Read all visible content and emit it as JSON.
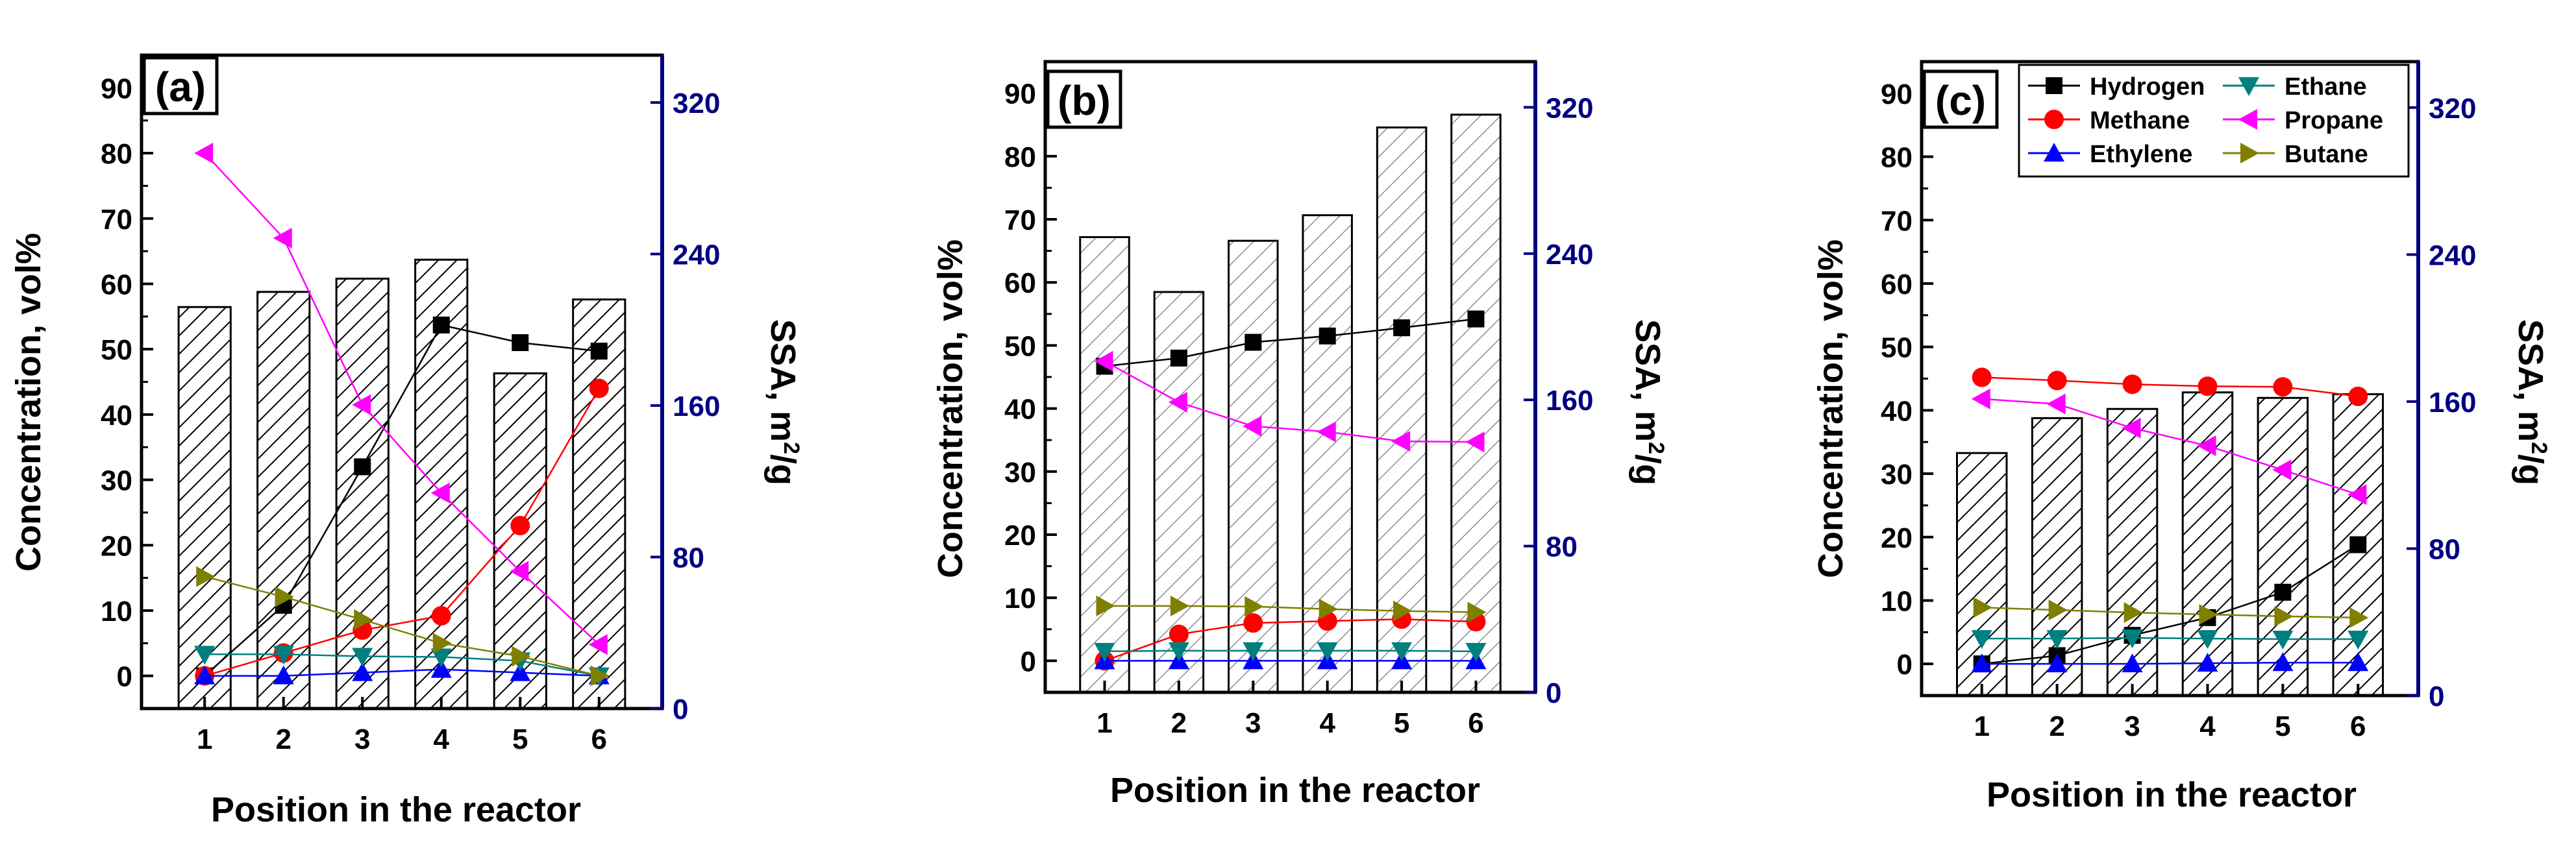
{
  "figure": {
    "colors": {
      "hydrogen": "#000000",
      "methane": "#ff0000",
      "ethylene": "#0000ff",
      "ethane": "#007f7f",
      "propane": "#ff00ff",
      "butane": "#7f7f00",
      "ssa_axis": "#000080",
      "bars_edge": "#000000"
    }
  },
  "chart_data": [
    {
      "panel": "(a)",
      "type": "bar+line",
      "xlabel": "Position in the reactor",
      "ylabel": "Concentration, vol%",
      "y2label_main": "SSA, m",
      "y2label_sup": "2",
      "y2label_tail": "/g",
      "categories": [
        "1",
        "2",
        "3",
        "4",
        "5",
        "6"
      ],
      "ylim": [
        -5,
        95
      ],
      "yticks": [
        "0",
        "10",
        "20",
        "30",
        "40",
        "50",
        "60",
        "70",
        "80",
        "90"
      ],
      "y2lim": [
        0,
        345
      ],
      "y2ticks": [
        "0",
        "80",
        "160",
        "240",
        "320"
      ],
      "bars": {
        "name": "SSA",
        "hatch": "dense",
        "values": [
          212,
          220,
          227,
          237,
          177,
          216
        ]
      },
      "series": [
        {
          "name": "Hydrogen",
          "marker": "square",
          "values": [
            0.0,
            10.8,
            32.0,
            53.7,
            51.0,
            49.7
          ]
        },
        {
          "name": "Methane",
          "marker": "circle",
          "values": [
            0.0,
            3.5,
            7.0,
            9.2,
            23.0,
            44.0
          ]
        },
        {
          "name": "Ethylene",
          "marker": "triangle-up",
          "values": [
            0.0,
            0.0,
            0.5,
            1.0,
            0.5,
            0.0
          ]
        },
        {
          "name": "Ethane",
          "marker": "triangle-down",
          "values": [
            3.3,
            3.3,
            3.0,
            2.9,
            2.3,
            0.0
          ]
        },
        {
          "name": "Propane",
          "marker": "triangle-left",
          "values": [
            80.0,
            67.0,
            41.5,
            28.0,
            16.0,
            4.8
          ]
        },
        {
          "name": "Butane",
          "marker": "triangle-right",
          "values": [
            15.2,
            12.1,
            8.6,
            5.0,
            3.0,
            0.0
          ]
        }
      ]
    },
    {
      "panel": "(b)",
      "type": "bar+line",
      "xlabel": "Position in the reactor",
      "ylabel": "Concentration, vol%",
      "y2label_main": "SSA, m",
      "y2label_sup": "2",
      "y2label_tail": "/g",
      "categories": [
        "1",
        "2",
        "3",
        "4",
        "5",
        "6"
      ],
      "ylim": [
        -5,
        95
      ],
      "yticks": [
        "0",
        "10",
        "20",
        "30",
        "40",
        "50",
        "60",
        "70",
        "80",
        "90"
      ],
      "y2lim": [
        0,
        345
      ],
      "y2ticks": [
        "0",
        "80",
        "160",
        "240",
        "320"
      ],
      "bars": {
        "name": "SSA",
        "hatch": "sparse",
        "values": [
          249,
          219,
          247,
          261,
          309,
          316
        ]
      },
      "series": [
        {
          "name": "Hydrogen",
          "marker": "square",
          "values": [
            46.7,
            48.0,
            50.5,
            51.5,
            52.8,
            54.2
          ]
        },
        {
          "name": "Methane",
          "marker": "circle",
          "values": [
            0.0,
            4.2,
            6.0,
            6.3,
            6.6,
            6.2
          ]
        },
        {
          "name": "Ethylene",
          "marker": "triangle-up",
          "values": [
            0.0,
            0.0,
            0.0,
            0.0,
            0.0,
            0.0
          ]
        },
        {
          "name": "Ethane",
          "marker": "triangle-down",
          "values": [
            1.5,
            1.6,
            1.6,
            1.6,
            1.6,
            1.5
          ]
        },
        {
          "name": "Propane",
          "marker": "triangle-left",
          "values": [
            47.5,
            41.0,
            37.2,
            36.3,
            34.8,
            34.7
          ]
        },
        {
          "name": "Butane",
          "marker": "triangle-right",
          "values": [
            8.7,
            8.7,
            8.6,
            8.2,
            7.9,
            7.7
          ]
        }
      ]
    },
    {
      "panel": "(c)",
      "type": "bar+line",
      "xlabel": "Position in the reactor",
      "ylabel": "Concentration, vol%",
      "y2label_main": "SSA, m",
      "y2label_sup": "2",
      "y2label_tail": "/g",
      "categories": [
        "1",
        "2",
        "3",
        "4",
        "5",
        "6"
      ],
      "ylim": [
        -5,
        95
      ],
      "yticks": [
        "0",
        "10",
        "20",
        "30",
        "40",
        "50",
        "60",
        "70",
        "80",
        "90"
      ],
      "y2lim": [
        0,
        345
      ],
      "y2ticks": [
        "0",
        "80",
        "160",
        "240",
        "320"
      ],
      "bars": {
        "name": "SSA",
        "hatch": "dense",
        "values": [
          132,
          151,
          156,
          165,
          162,
          164
        ]
      },
      "series": [
        {
          "name": "Hydrogen",
          "marker": "square",
          "values": [
            0.0,
            1.3,
            4.5,
            7.3,
            11.3,
            18.8
          ]
        },
        {
          "name": "Methane",
          "marker": "circle",
          "values": [
            45.2,
            44.7,
            44.1,
            43.8,
            43.7,
            42.2
          ]
        },
        {
          "name": "Ethylene",
          "marker": "triangle-up",
          "values": [
            0.0,
            0.0,
            0.0,
            0.1,
            0.2,
            0.2
          ]
        },
        {
          "name": "Ethane",
          "marker": "triangle-down",
          "values": [
            4.0,
            4.0,
            4.1,
            4.0,
            3.9,
            3.9
          ]
        },
        {
          "name": "Propane",
          "marker": "triangle-left",
          "values": [
            41.8,
            41.0,
            37.2,
            34.4,
            30.6,
            26.7
          ]
        },
        {
          "name": "Butane",
          "marker": "triangle-right",
          "values": [
            8.9,
            8.5,
            8.1,
            7.8,
            7.5,
            7.3
          ]
        }
      ],
      "legend": {
        "placement": "top-right",
        "entries": [
          "Hydrogen",
          "Ethane",
          "Methane",
          "Propane",
          "Ethylene",
          "Butane"
        ]
      }
    }
  ]
}
